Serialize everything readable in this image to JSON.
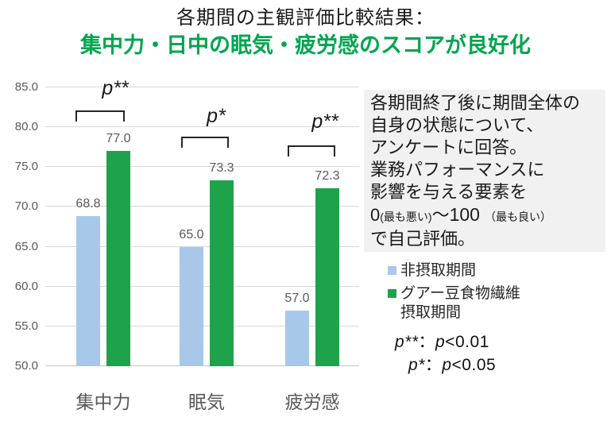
{
  "header": {
    "title": "各期間の主観評価比較結果：",
    "subtitle": "集中力・日中の眠気・疲労感のスコアが良好化"
  },
  "info_box": {
    "lines": [
      "各期間終了後に期間全体の",
      "自身の状態について、",
      "アンケートに回答。",
      "業務パフォーマンスに",
      "影響を与える要素を"
    ],
    "scale": {
      "zero": "0",
      "worst": "(最も悪い)",
      "to": "～",
      "hundred": "100",
      "best": "（最も良い）"
    },
    "last_line": "で自己評価。"
  },
  "legend": {
    "series1": "非摂取期間",
    "series2_line1": "グアー豆食物繊維",
    "series2_line2": "摂取期間"
  },
  "notes": {
    "n1": {
      "sig": "p**",
      "colon": "：",
      "p": "p",
      "cmp": "<0.01"
    },
    "n2": {
      "sig": "p*",
      "colon": "：",
      "p": "p",
      "cmp": "<0.05"
    }
  },
  "chart_data": {
    "type": "bar",
    "title": "各期間の主観評価比較結果：集中力・日中の眠気・疲労感のスコアが良好化",
    "categories": [
      "集中力",
      "眠気",
      "疲労感"
    ],
    "series": [
      {
        "name": "非摂取期間",
        "color": "#A8C8E9",
        "values": [
          68.8,
          65.0,
          57.0
        ]
      },
      {
        "name": "グアー豆食物繊維摂取期間",
        "color": "#1FA24C",
        "values": [
          77.0,
          73.3,
          72.3
        ]
      }
    ],
    "ylim": [
      50,
      85
    ],
    "ytick_step": 5,
    "xlabel": "",
    "ylabel": "",
    "grid": true,
    "legend_position": "right",
    "annotations": [
      {
        "label": "p**",
        "category": "集中力",
        "meaning": "p<0.01"
      },
      {
        "label": "p*",
        "category": "眠気",
        "meaning": "p<0.05"
      },
      {
        "label": "p**",
        "category": "疲労感",
        "meaning": "p<0.01"
      }
    ]
  }
}
